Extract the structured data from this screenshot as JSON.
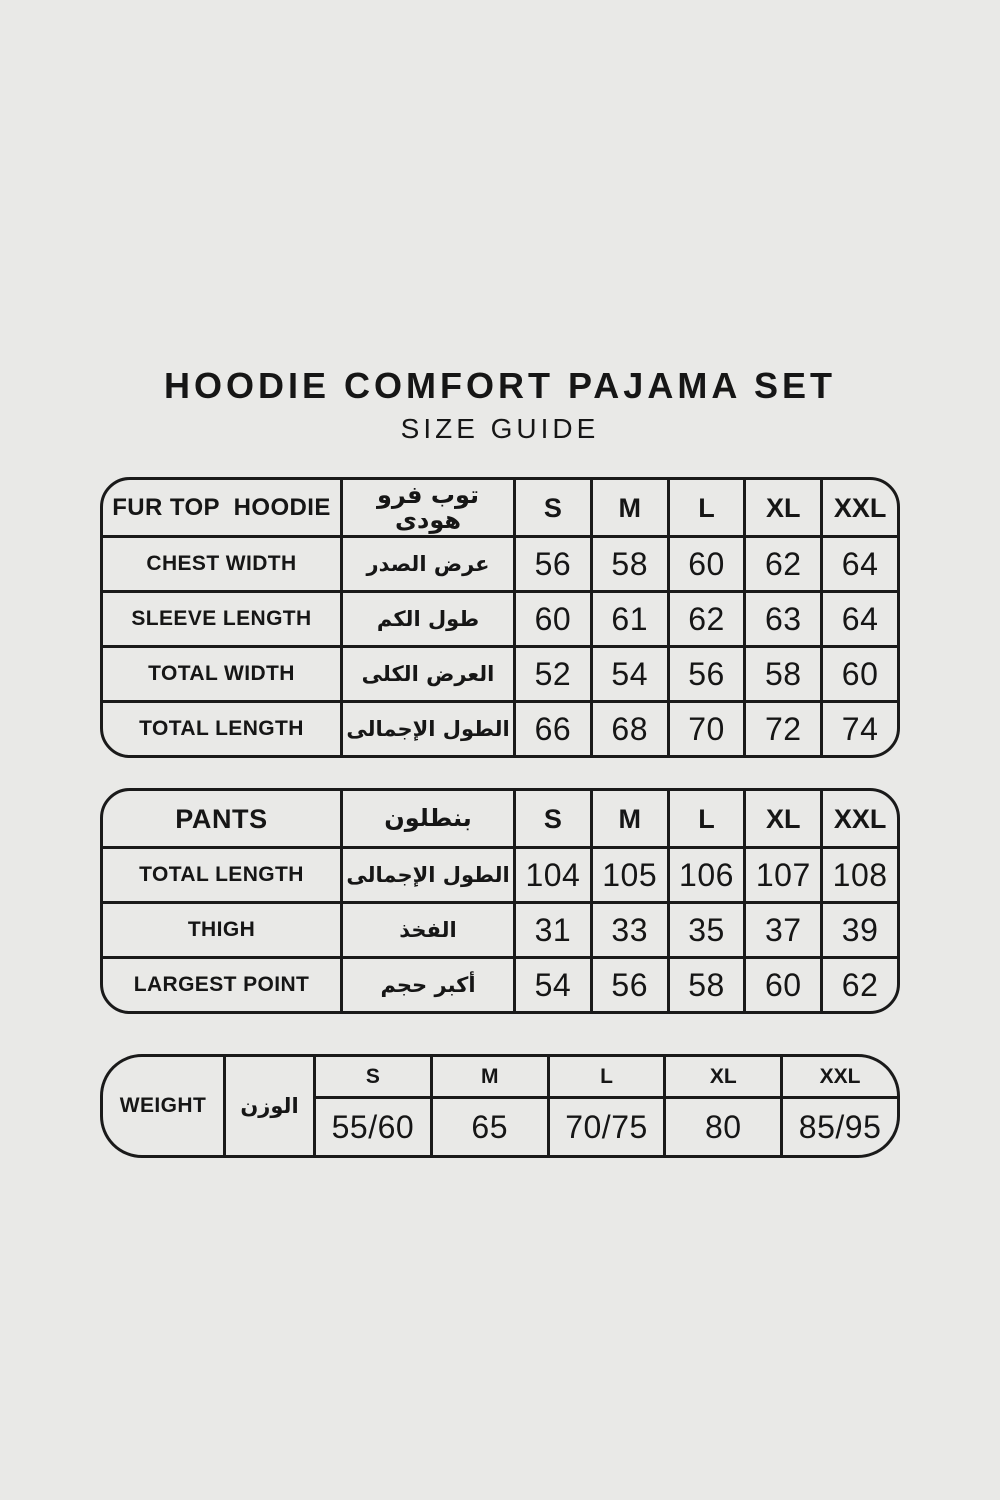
{
  "page": {
    "title": "HOODIE COMFORT PAJAMA SET",
    "subtitle": "SIZE GUIDE",
    "background_color": "#e9e9e7",
    "line_color": "#1a1a1a",
    "text_color": "#161616"
  },
  "sizes": [
    "S",
    "M",
    "L",
    "XL",
    "XXL"
  ],
  "hoodie_table": {
    "header": {
      "en": "FUR TOP  HOODIE",
      "ar": "توب فرو هودى"
    },
    "rows": [
      {
        "en": "CHEST WIDTH",
        "ar": "عرض الصدر",
        "values": [
          "56",
          "58",
          "60",
          "62",
          "64"
        ]
      },
      {
        "en": "SLEEVE LENGTH",
        "ar": "طول الكم",
        "values": [
          "60",
          "61",
          "62",
          "63",
          "64"
        ]
      },
      {
        "en": "TOTAL WIDTH",
        "ar": "العرض الكلى",
        "values": [
          "52",
          "54",
          "56",
          "58",
          "60"
        ]
      },
      {
        "en": "TOTAL LENGTH",
        "ar": "الطول الإجمالى",
        "values": [
          "66",
          "68",
          "70",
          "72",
          "74"
        ]
      }
    ]
  },
  "pants_table": {
    "header": {
      "en": "PANTS",
      "ar": "بنطلون"
    },
    "rows": [
      {
        "en": "TOTAL LENGTH",
        "ar": "الطول الإجمالى",
        "values": [
          "104",
          "105",
          "106",
          "107",
          "108"
        ]
      },
      {
        "en": "THIGH",
        "ar": "الفخذ",
        "values": [
          "31",
          "33",
          "35",
          "37",
          "39"
        ]
      },
      {
        "en": "LARGEST POINT",
        "ar": "أكبر حجم",
        "values": [
          "54",
          "56",
          "58",
          "60",
          "62"
        ]
      }
    ]
  },
  "weight_table": {
    "label": {
      "en": "WEIGHT",
      "ar": "الوزن"
    },
    "values": [
      "55/60",
      "65",
      "70/75",
      "80",
      "85/95"
    ]
  }
}
